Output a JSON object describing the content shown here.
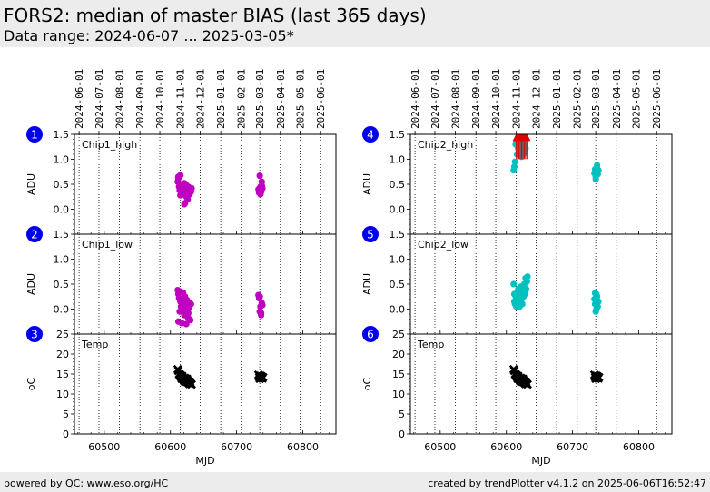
{
  "header": {
    "title": "FORS2: median of master BIAS (last 365 days)",
    "subtitle": "Data range: 2024-06-07 ... 2025-03-05*"
  },
  "footer": {
    "left": "powered by QC: www.eso.org/HC",
    "right": "created by trendPlotter v4.1.2 on 2025-06-06T16:52:47"
  },
  "colors": {
    "chip1": "#c000c0",
    "chip2": "#00c0c0",
    "temp": "#000000",
    "outlier": "#e00000",
    "badge": "#0000ee",
    "header_bg": "#ececec"
  },
  "chart_data": [
    {
      "type": "scatter",
      "badge": "1",
      "panel_label": "Chip1_high",
      "ylabel": "ADU",
      "xlabel": "",
      "xlim": [
        60455,
        60850
      ],
      "ylim": [
        -0.5,
        1.5
      ],
      "yticks": [
        "1.5",
        "1.0",
        "0.5",
        "0.0"
      ],
      "ytick_values": [
        1.5,
        1.0,
        0.5,
        0.0
      ],
      "series": [
        {
          "x": [
            60611,
            60612,
            60613,
            60614,
            60615,
            60616,
            60617,
            60618,
            60619,
            60620,
            60621,
            60622,
            60623,
            60624,
            60626,
            60627,
            60629,
            60630,
            60631,
            60632,
            60612,
            60615,
            60618,
            60621,
            60624,
            60627,
            60630,
            60733,
            60734,
            60735,
            60736,
            60737,
            60738,
            60739,
            60734,
            60736,
            60738
          ],
          "y": [
            0.55,
            0.62,
            0.45,
            0.38,
            0.68,
            0.5,
            0.35,
            0.3,
            0.44,
            0.4,
            0.1,
            0.12,
            0.5,
            0.25,
            0.2,
            0.45,
            0.3,
            0.38,
            0.35,
            0.42,
            0.65,
            0.28,
            0.48,
            0.52,
            0.36,
            0.33,
            0.4,
            0.4,
            0.33,
            0.67,
            0.45,
            0.35,
            0.55,
            0.42,
            0.38,
            0.3,
            0.48
          ]
        }
      ],
      "outliers": []
    },
    {
      "type": "scatter",
      "badge": "2",
      "panel_label": "Chip1_low",
      "ylabel": "ADU",
      "xlabel": "",
      "xlim": [
        60455,
        60850
      ],
      "ylim": [
        -0.5,
        1.5
      ],
      "yticks": [
        "1.5",
        "1.0",
        "0.5",
        "0.0"
      ],
      "ytick_values": [
        1.5,
        1.0,
        0.5,
        0.0
      ],
      "series": [
        {
          "x": [
            60611,
            60612,
            60613,
            60614,
            60615,
            60616,
            60617,
            60618,
            60619,
            60620,
            60621,
            60622,
            60623,
            60624,
            60625,
            60626,
            60627,
            60628,
            60629,
            60630,
            60631,
            60612,
            60615,
            60618,
            60621,
            60624,
            60627,
            60733,
            60734,
            60735,
            60736,
            60737,
            60738,
            60739,
            60735,
            60737
          ],
          "y": [
            0.38,
            0.3,
            0.22,
            -0.05,
            0.15,
            0.05,
            -0.28,
            0.2,
            0.33,
            0.0,
            -0.12,
            0.25,
            0.08,
            -0.3,
            0.18,
            -0.15,
            -0.08,
            0.02,
            0.12,
            -0.22,
            0.1,
            -0.25,
            0.35,
            -0.02,
            0.15,
            0.05,
            -0.18,
            0.28,
            0.22,
            -0.05,
            0.05,
            -0.12,
            0.12,
            0.08,
            0.25,
            -0.08
          ]
        }
      ],
      "outliers": []
    },
    {
      "type": "scatter",
      "badge": "3",
      "panel_label": "Temp",
      "ylabel": "oC",
      "xlabel": "MJD",
      "xlim": [
        60455,
        60850
      ],
      "ylim": [
        0,
        25
      ],
      "yticks": [
        "25",
        "20",
        "15",
        "10",
        "5",
        "0"
      ],
      "ytick_values": [
        25,
        20,
        15,
        10,
        5,
        0
      ],
      "series": [
        {
          "x": [
            60611,
            60612,
            60613,
            60614,
            60615,
            60616,
            60617,
            60618,
            60619,
            60620,
            60621,
            60622,
            60623,
            60624,
            60625,
            60626,
            60627,
            60628,
            60629,
            60630,
            60631,
            60632,
            60733,
            60734,
            60735,
            60736,
            60737,
            60738,
            60739,
            60740
          ],
          "y": [
            16.2,
            15.8,
            15.0,
            14.6,
            14.8,
            14.2,
            13.8,
            14.5,
            14.0,
            13.5,
            13.2,
            14.0,
            13.6,
            13.0,
            13.8,
            13.4,
            12.8,
            13.2,
            12.5,
            13.0,
            12.6,
            12.4,
            14.8,
            14.2,
            13.8,
            14.6,
            14.0,
            14.4,
            13.9,
            14.2
          ]
        }
      ],
      "outliers": []
    },
    {
      "type": "scatter",
      "badge": "4",
      "panel_label": "Chip2_high",
      "ylabel": "ADU",
      "xlabel": "",
      "xlim": [
        60455,
        60850
      ],
      "ylim": [
        -0.5,
        1.5
      ],
      "yticks": [
        "1.5",
        "1.0",
        "0.5",
        "0.0"
      ],
      "ytick_values": [
        1.5,
        1.0,
        0.5,
        0.0
      ],
      "series": [
        {
          "x": [
            60611,
            60612,
            60613,
            60614,
            60615,
            60616,
            60617,
            60618,
            60619,
            60620,
            60621,
            60622,
            60623,
            60624,
            60625,
            60626,
            60627,
            60628,
            60629,
            60733,
            60734,
            60735,
            60736,
            60737,
            60738,
            60739,
            60735,
            60737
          ],
          "y": [
            0.78,
            0.85,
            0.95,
            1.3,
            1.35,
            1.1,
            1.25,
            1.2,
            1.3,
            1.35,
            1.15,
            1.3,
            1.05,
            1.2,
            1.28,
            1.15,
            1.12,
            1.3,
            1.22,
            0.72,
            0.8,
            0.6,
            0.75,
            0.88,
            0.7,
            0.78,
            0.65,
            0.82
          ]
        }
      ],
      "outliers": {
        "x": [
          60615,
          60617,
          60619,
          60621,
          60623,
          60625,
          60627,
          60629,
          60631
        ],
        "y": [
          1.44,
          1.44,
          1.44,
          1.44,
          1.44,
          1.44,
          1.44,
          1.44,
          1.44
        ]
      }
    },
    {
      "type": "scatter",
      "badge": "5",
      "panel_label": "Chip2_low",
      "ylabel": "ADU",
      "xlabel": "",
      "xlim": [
        60455,
        60850
      ],
      "ylim": [
        -0.5,
        1.5
      ],
      "yticks": [
        "1.5",
        "1.0",
        "0.5",
        "0.0"
      ],
      "ytick_values": [
        1.5,
        1.0,
        0.5,
        0.0
      ],
      "series": [
        {
          "x": [
            60611,
            60612,
            60613,
            60614,
            60615,
            60616,
            60617,
            60618,
            60619,
            60620,
            60621,
            60622,
            60623,
            60624,
            60625,
            60626,
            60627,
            60628,
            60629,
            60630,
            60631,
            60632,
            60612,
            60616,
            60620,
            60733,
            60734,
            60735,
            60736,
            60737,
            60738,
            60739,
            60734,
            60736
          ],
          "y": [
            0.5,
            0.3,
            0.1,
            0.25,
            0.05,
            0.2,
            0.35,
            0.4,
            0.15,
            0.05,
            0.3,
            0.45,
            0.2,
            0.1,
            0.38,
            0.25,
            0.5,
            0.3,
            0.62,
            0.4,
            0.55,
            0.65,
            0.15,
            0.08,
            0.28,
            0.2,
            0.1,
            -0.05,
            0.3,
            0.25,
            0.05,
            0.15,
            0.32,
            0.0
          ]
        }
      ],
      "outliers": []
    },
    {
      "type": "scatter",
      "badge": "6",
      "panel_label": "Temp",
      "ylabel": "oC",
      "xlabel": "MJD",
      "xlim": [
        60455,
        60850
      ],
      "ylim": [
        0,
        25
      ],
      "yticks": [
        "25",
        "20",
        "15",
        "10",
        "5",
        "0"
      ],
      "ytick_values": [
        25,
        20,
        15,
        10,
        5,
        0
      ],
      "series": [
        {
          "x": [
            60611,
            60612,
            60613,
            60614,
            60615,
            60616,
            60617,
            60618,
            60619,
            60620,
            60621,
            60622,
            60623,
            60624,
            60625,
            60626,
            60627,
            60628,
            60629,
            60630,
            60631,
            60632,
            60733,
            60734,
            60735,
            60736,
            60737,
            60738,
            60739,
            60740
          ],
          "y": [
            16.2,
            15.8,
            15.0,
            14.6,
            14.8,
            14.2,
            13.8,
            14.5,
            14.0,
            13.5,
            13.2,
            14.0,
            13.6,
            13.0,
            13.8,
            13.4,
            12.8,
            13.2,
            12.5,
            13.0,
            12.6,
            12.4,
            14.8,
            14.2,
            13.8,
            14.6,
            14.0,
            14.4,
            13.9,
            14.2
          ]
        }
      ],
      "outliers": []
    }
  ],
  "x_axis": {
    "ticks": [
      "60500",
      "60600",
      "60700",
      "60800"
    ],
    "tick_values": [
      60500,
      60600,
      60700,
      60800
    ]
  },
  "date_axis": {
    "labels": [
      "2024-06-01",
      "2024-07-01",
      "2024-08-01",
      "2024-09-01",
      "2024-10-01",
      "2024-11-01",
      "2024-12-01",
      "2025-01-01",
      "2025-02-01",
      "2025-03-01",
      "2025-04-01",
      "2025-05-01",
      "2025-06-01"
    ],
    "mjd": [
      60462,
      60492,
      60523,
      60554,
      60584,
      60615,
      60645,
      60676,
      60707,
      60735,
      60766,
      60796,
      60827
    ]
  }
}
